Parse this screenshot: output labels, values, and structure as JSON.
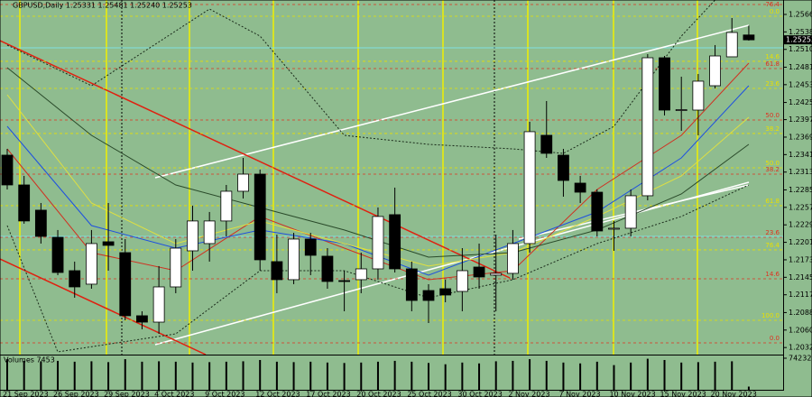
{
  "chart_data": {
    "type": "candlestick",
    "title": "GBPUSD,Daily  1.25331 1.25481 1.25240 1.25253",
    "categories": [
      "21 Sep 2023",
      null,
      null,
      "26 Sep 2023",
      null,
      null,
      "29 Sep 2023",
      null,
      null,
      "4 Oct 2023",
      null,
      null,
      "9 Oct 2023",
      null,
      null,
      "12 Oct 2023",
      null,
      null,
      "17 Oct 2023",
      null,
      null,
      "20 Oct 2023",
      null,
      null,
      "25 Oct 2023",
      null,
      null,
      "30 Oct 2023",
      null,
      null,
      "2 Nov 2023",
      null,
      null,
      "7 Nov 2023",
      null,
      null,
      "10 Nov 2023",
      null,
      null,
      "15 Nov 2023",
      null,
      null,
      "20 Nov 2023",
      null,
      null
    ],
    "open": [
      1.23406,
      1.22929,
      1.22525,
      1.22091,
      1.21556,
      1.2134,
      1.22019,
      1.21845,
      1.20834,
      1.20732,
      1.21296,
      1.21874,
      1.2199,
      1.22352,
      1.22828,
      1.23102,
      1.21701,
      1.21412,
      1.22062,
      1.21788,
      1.21397,
      1.21412,
      1.21585,
      1.22453,
      1.21585,
      1.21238,
      1.21267,
      1.21224,
      1.21614,
      1.21484,
      1.21513,
      1.2199,
      1.23724,
      1.23406,
      1.22958,
      1.22813,
      1.22221,
      1.22236,
      1.22756,
      1.24966,
      1.24128,
      1.24128,
      1.24518,
      1.24981,
      1.25331
    ],
    "high": [
      1.23507,
      1.23074,
      1.2264,
      1.22207,
      1.21701,
      1.22207,
      1.2264,
      1.22062,
      1.20906,
      1.21629,
      1.22062,
      1.22597,
      1.22496,
      1.22929,
      1.23362,
      1.23175,
      1.22134,
      1.22163,
      1.22163,
      1.21917,
      1.21556,
      1.21845,
      1.22568,
      1.22886,
      1.21701,
      1.2134,
      1.21412,
      1.21917,
      1.2199,
      1.22134,
      1.22207,
      1.2394,
      1.24273,
      1.23507,
      1.23074,
      1.22857,
      1.22352,
      1.22857,
      1.25024,
      1.24995,
      1.24663,
      1.24706,
      1.25169,
      1.25602,
      1.25481
    ],
    "low": [
      1.22857,
      1.22308,
      1.2199,
      1.21484,
      1.21123,
      1.21267,
      1.21556,
      1.20761,
      1.20617,
      1.20545,
      1.21195,
      1.21556,
      1.21701,
      1.22105,
      1.22712,
      1.21556,
      1.21195,
      1.2134,
      1.21484,
      1.21267,
      1.20906,
      1.21195,
      1.21412,
      1.21527,
      1.20906,
      1.20718,
      1.2105,
      1.20906,
      1.21267,
      1.20906,
      1.21412,
      1.21845,
      1.23362,
      1.22741,
      1.2264,
      1.22105,
      1.21874,
      1.22105,
      1.22683,
      1.24042,
      1.23796,
      1.23724,
      1.24475,
      1.24981,
      1.2524
    ],
    "close": [
      1.22929,
      1.22352,
      1.22105,
      1.21527,
      1.21296,
      1.2199,
      1.21961,
      1.20834,
      1.20732,
      1.21296,
      1.21917,
      1.22352,
      1.22352,
      1.22828,
      1.23102,
      1.2173,
      1.21412,
      1.22062,
      1.21802,
      1.21383,
      1.21383,
      1.21585,
      1.22424,
      1.21585,
      1.21079,
      1.21079,
      1.21166,
      1.21556,
      1.21455,
      1.21513,
      1.2199,
      1.23782,
      1.23435,
      1.23001,
      1.22813,
      1.22192,
      1.22236,
      1.22756,
      1.24966,
      1.24128,
      1.24135,
      1.24591,
      1.24995,
      1.25371,
      1.25253
    ],
    "current_price": {
      "value": 1.25253,
      "label": "1.25253"
    },
    "ylim": [
      1.20212,
      1.25891
    ],
    "yticks": [
      {
        "value": 1.2566,
        "label": "1.25660"
      },
      {
        "value": 1.2538,
        "label": "1.25380"
      },
      {
        "value": 1.251,
        "label": "1.25100"
      },
      {
        "value": 1.24815,
        "label": "1.24815"
      },
      {
        "value": 1.24535,
        "label": "1.24535"
      },
      {
        "value": 1.2425,
        "label": "1.24250"
      },
      {
        "value": 1.23975,
        "label": "1.23975"
      },
      {
        "value": 1.23695,
        "label": "1.23695"
      },
      {
        "value": 1.23415,
        "label": "1.23415"
      },
      {
        "value": 1.23135,
        "label": "1.23135"
      },
      {
        "value": 1.2285,
        "label": "1.22850"
      },
      {
        "value": 1.2257,
        "label": "1.22570"
      },
      {
        "value": 1.2229,
        "label": "1.22290"
      },
      {
        "value": 1.2201,
        "label": "1.22010"
      },
      {
        "value": 1.2173,
        "label": "1.21730"
      },
      {
        "value": 1.2145,
        "label": "1.21450"
      },
      {
        "value": 1.2117,
        "label": "1.21170"
      },
      {
        "value": 1.20885,
        "label": "1.20885"
      },
      {
        "value": 1.20605,
        "label": "1.20605"
      },
      {
        "value": 1.20325,
        "label": "1.20325"
      }
    ],
    "up_color": "#ffffff",
    "down_color": "#000000",
    "indicators": [
      {
        "color": "#d03020",
        "style": "solid",
        "x": [
          0,
          5,
          10,
          15,
          20,
          25,
          30,
          35,
          40,
          44
        ],
        "values": [
          1.23507,
          1.21845,
          1.21556,
          1.22424,
          1.21917,
          1.21412,
          1.21556,
          1.22857,
          1.23724,
          1.2488
        ]
      },
      {
        "color": "#1e50e0",
        "style": "solid",
        "x": [
          0,
          5,
          10,
          15,
          20,
          25,
          30,
          35,
          40,
          44
        ],
        "values": [
          1.23868,
          1.22279,
          1.21917,
          1.22207,
          1.2199,
          1.21484,
          1.2199,
          1.22496,
          1.23362,
          1.24518
        ]
      },
      {
        "color": "#e0e040",
        "style": "solid",
        "x": [
          0,
          5,
          10,
          15,
          20,
          25,
          30,
          35,
          40,
          44
        ],
        "values": [
          1.24374,
          1.2264,
          1.2199,
          1.22352,
          1.2199,
          1.21629,
          1.21845,
          1.22424,
          1.23074,
          1.24013
        ]
      },
      {
        "color": "#2a4a2a",
        "style": "solid",
        "x": [
          0,
          5,
          10,
          15,
          20,
          25,
          30,
          35,
          40,
          44
        ],
        "values": [
          1.24807,
          1.23724,
          1.22929,
          1.22568,
          1.22207,
          1.21773,
          1.21845,
          1.22207,
          1.22784,
          1.23579
        ]
      },
      {
        "color": "#1a2a1a",
        "style": "dotted",
        "x": [
          0,
          5,
          12,
          15,
          20,
          25,
          30,
          33,
          36,
          40,
          42
        ],
        "values": [
          1.25169,
          1.24518,
          1.25747,
          1.25313,
          1.23724,
          1.23579,
          1.23507,
          1.23435,
          1.23868,
          1.25313,
          1.25891
        ]
      },
      {
        "color": "#1a2a1a",
        "style": "dotted",
        "x": [
          0,
          3,
          10,
          15,
          20,
          25,
          30,
          35,
          40,
          44
        ],
        "values": [
          1.22279,
          1.20256,
          1.20545,
          1.21556,
          1.21556,
          1.21123,
          1.21412,
          1.2199,
          1.22424,
          1.22929
        ]
      }
    ],
    "fib_levels": [
      {
        "label": "76.4",
        "value": 1.25819,
        "color": "#e03020"
      },
      {
        "label": "0.0",
        "value": 1.25631,
        "color": "#e8e000"
      },
      {
        "label": "14.6",
        "value": 1.24909,
        "color": "#e8e000"
      },
      {
        "label": "61.8",
        "value": 1.24793,
        "color": "#e03020"
      },
      {
        "label": "23.6",
        "value": 1.24475,
        "color": "#e8e000"
      },
      {
        "label": "50.0",
        "value": 1.23969,
        "color": "#e03020"
      },
      {
        "label": "38.2",
        "value": 1.23753,
        "color": "#e8e000"
      },
      {
        "label": "50.0",
        "value": 1.23203,
        "color": "#e8e000"
      },
      {
        "label": "38.2",
        "value": 1.23102,
        "color": "#e03020"
      },
      {
        "label": "61.8",
        "value": 1.22597,
        "color": "#e8e000"
      },
      {
        "label": "23.6",
        "value": 1.22091,
        "color": "#e03020"
      },
      {
        "label": "76.4",
        "value": 1.21889,
        "color": "#e8e000"
      },
      {
        "label": "14.6",
        "value": 1.21426,
        "color": "#e03020"
      },
      {
        "label": "100.0",
        "value": 1.20761,
        "color": "#e8e000"
      },
      {
        "label": "0.0",
        "value": 1.204,
        "color": "#e03020"
      }
    ],
    "volume": {
      "title": "Volumes 7453",
      "values": [
        72000,
        68000,
        67000,
        68000,
        66000,
        67000,
        65000,
        72000,
        66000,
        67000,
        66000,
        64000,
        65000,
        66000,
        67000,
        70000,
        66000,
        65000,
        66000,
        64000,
        63000,
        64000,
        66000,
        68000,
        66000,
        63000,
        60000,
        64000,
        62000,
        67000,
        68000,
        72000,
        68000,
        64000,
        62000,
        66000,
        58000,
        64000,
        73000,
        70000,
        64000,
        65000,
        66000,
        67000,
        7453
      ],
      "ylim": [
        0,
        74232
      ],
      "yticks": [
        74232
      ],
      "color": "#000000"
    }
  }
}
